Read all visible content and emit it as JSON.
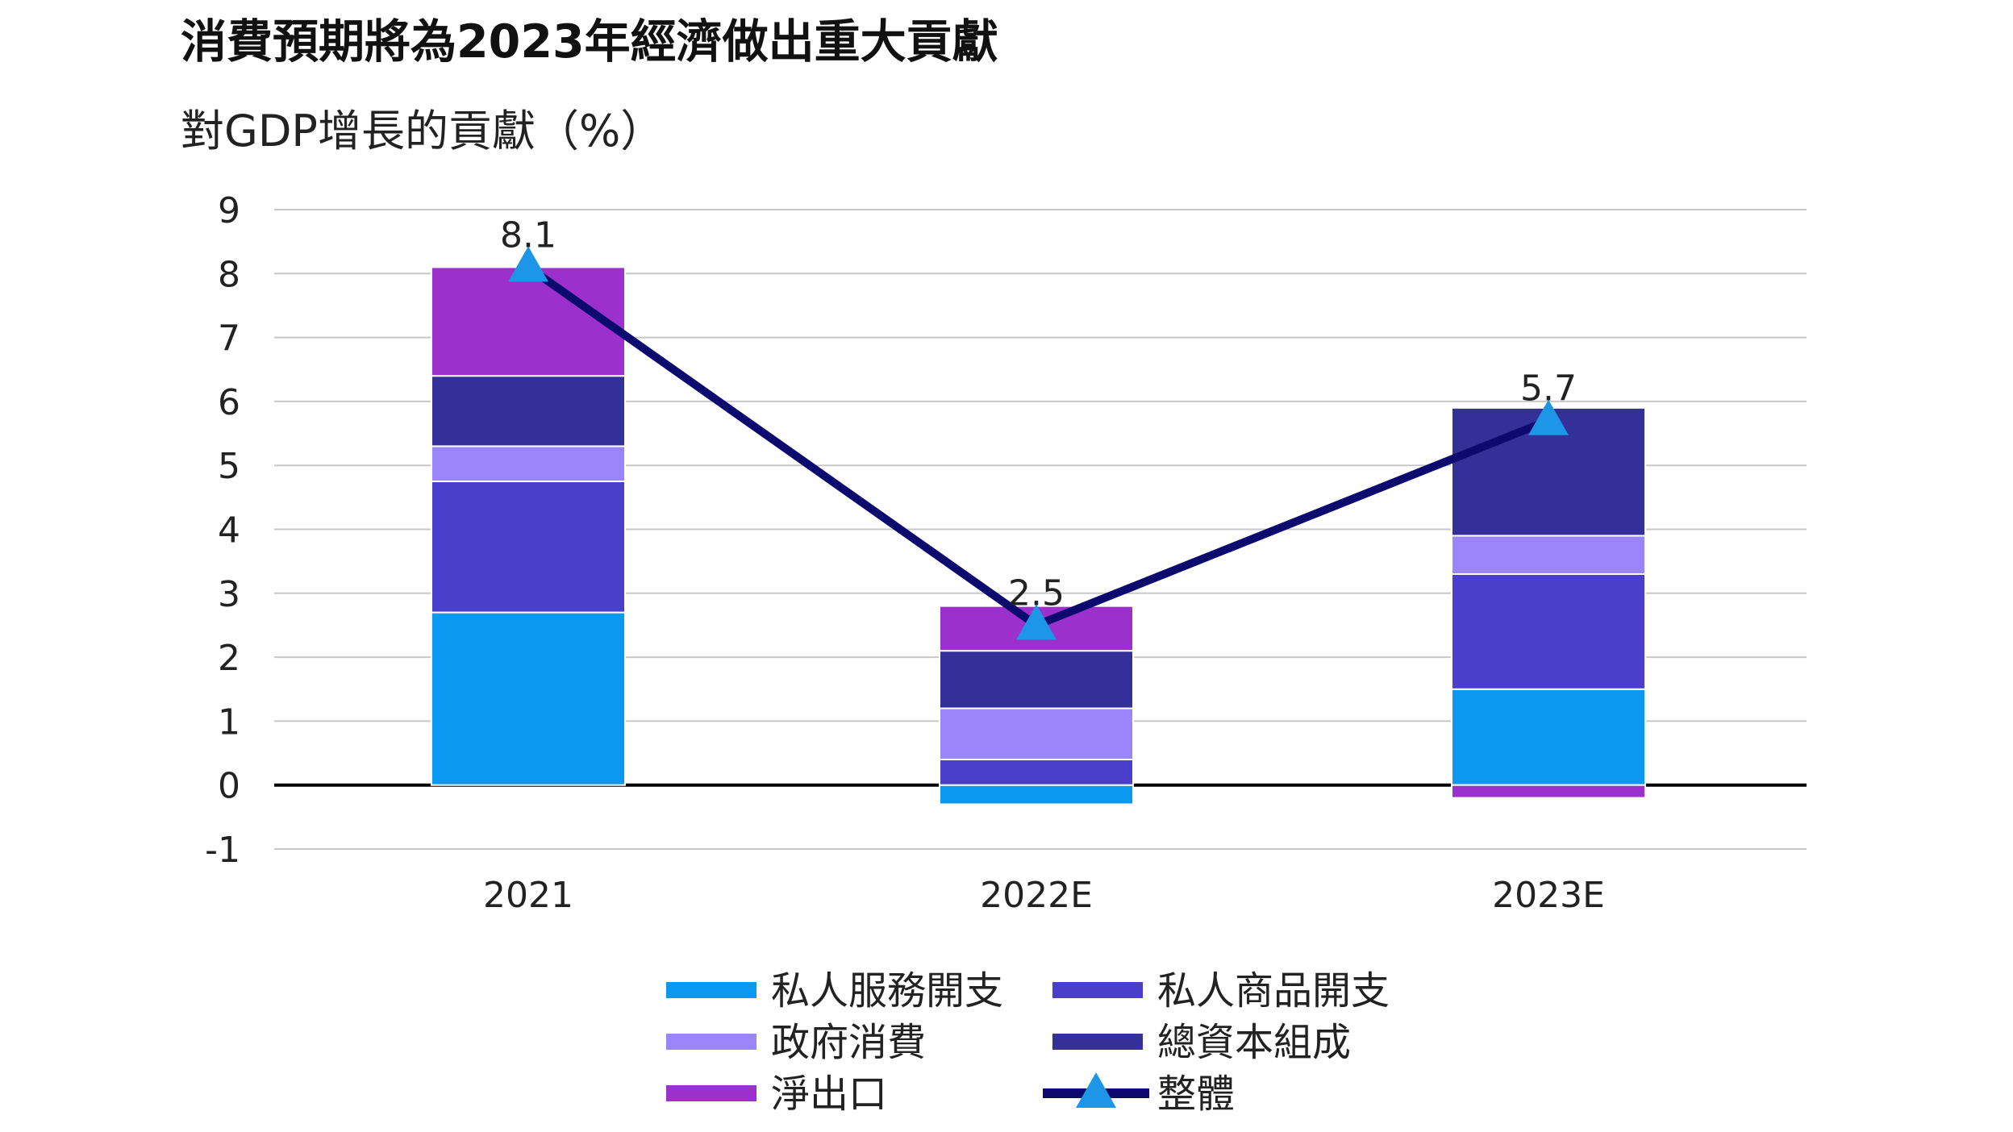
{
  "chart_data": {
    "type": "bar",
    "stacked": true,
    "title": "消費預期將為2023年經濟做出重大貢獻",
    "subtitle": "對GDP增長的貢獻（%）",
    "categories": [
      "2021",
      "2022E",
      "2023E"
    ],
    "ylim": [
      -1,
      9
    ],
    "yticks": [
      -1,
      0,
      1,
      2,
      3,
      4,
      5,
      6,
      7,
      8,
      9
    ],
    "grid": true,
    "legend_position": "bottom",
    "series": [
      {
        "name": "私人服務開支",
        "kind": "bar",
        "color": "#0A98F0",
        "values": [
          2.7,
          -0.3,
          1.5
        ]
      },
      {
        "name": "私人商品開支",
        "kind": "bar",
        "color": "#4A3ECC",
        "values": [
          2.05,
          0.4,
          1.8
        ]
      },
      {
        "name": "政府消費",
        "kind": "bar",
        "color": "#9A86FA",
        "values": [
          0.55,
          0.8,
          0.6
        ]
      },
      {
        "name": "總資本組成",
        "kind": "bar",
        "color": "#33309A",
        "values": [
          1.1,
          0.9,
          2.0
        ]
      },
      {
        "name": "淨出口",
        "kind": "bar",
        "color": "#9C30CC",
        "values": [
          1.7,
          0.7,
          -0.2
        ]
      },
      {
        "name": "整體",
        "kind": "line",
        "color": "#0C0A6E",
        "marker_color": "#1E96E8",
        "values": [
          8.1,
          2.5,
          5.7
        ]
      }
    ],
    "data_labels": [
      "8.1",
      "2.5",
      "5.7"
    ]
  }
}
